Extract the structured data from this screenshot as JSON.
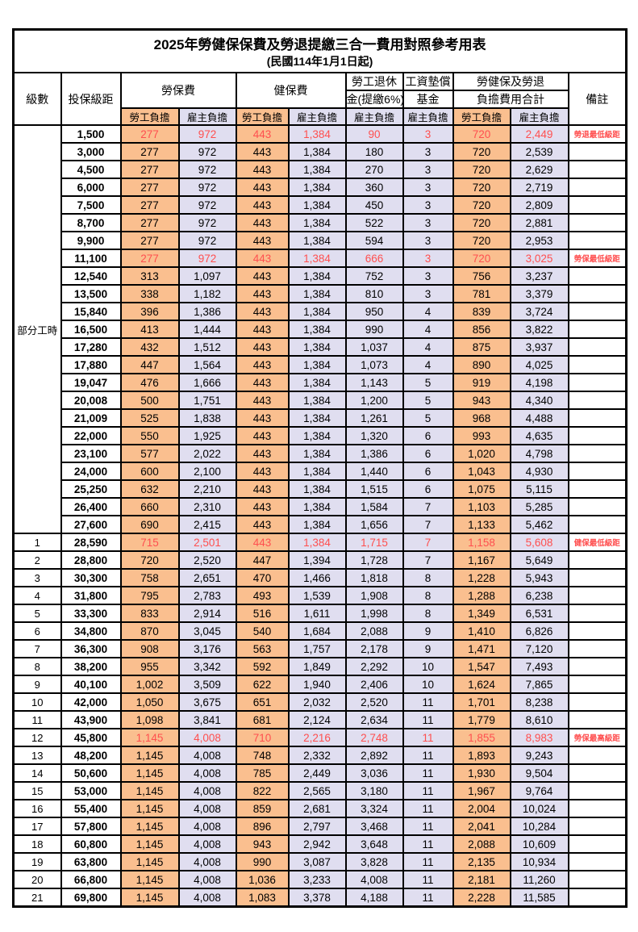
{
  "title": "2025年勞健保保費及勞退提繳三合一費用對照參考用表",
  "subtitle": "(民國114年1月1日起)",
  "colors": {
    "employee_cell_bg": "#FABF8F",
    "employer_cell_bg": "#E0DEF0",
    "highlight_text": "#FF4F4F",
    "border": "#000000"
  },
  "header": {
    "level": "級數",
    "bracket": "投保級距",
    "labor_insurance": "勞保費",
    "health_insurance": "健保費",
    "pension_line1": "勞工退休",
    "pension_line2": "金(提繳6%)",
    "wage_fund_line1": "工資墊償",
    "wage_fund_line2": "基金",
    "total_line1": "勞健保及勞退",
    "total_line2": "負擔費用合計",
    "employee": "勞工負擔",
    "employer": "雇主負擔",
    "remark": "備註"
  },
  "part_time_label": "部分工時",
  "rows": [
    {
      "level": "",
      "bracket": "1,500",
      "values": [
        "277",
        "972",
        "443",
        "1,384",
        "90",
        "3",
        "720",
        "2,449"
      ],
      "remark": "勞退最低級距",
      "red": true
    },
    {
      "level": "",
      "bracket": "3,000",
      "values": [
        "277",
        "972",
        "443",
        "1,384",
        "180",
        "3",
        "720",
        "2,539"
      ],
      "remark": "",
      "red": false
    },
    {
      "level": "",
      "bracket": "4,500",
      "values": [
        "277",
        "972",
        "443",
        "1,384",
        "270",
        "3",
        "720",
        "2,629"
      ],
      "remark": "",
      "red": false
    },
    {
      "level": "",
      "bracket": "6,000",
      "values": [
        "277",
        "972",
        "443",
        "1,384",
        "360",
        "3",
        "720",
        "2,719"
      ],
      "remark": "",
      "red": false
    },
    {
      "level": "",
      "bracket": "7,500",
      "values": [
        "277",
        "972",
        "443",
        "1,384",
        "450",
        "3",
        "720",
        "2,809"
      ],
      "remark": "",
      "red": false
    },
    {
      "level": "",
      "bracket": "8,700",
      "values": [
        "277",
        "972",
        "443",
        "1,384",
        "522",
        "3",
        "720",
        "2,881"
      ],
      "remark": "",
      "red": false
    },
    {
      "level": "",
      "bracket": "9,900",
      "values": [
        "277",
        "972",
        "443",
        "1,384",
        "594",
        "3",
        "720",
        "2,953"
      ],
      "remark": "",
      "red": false
    },
    {
      "level": "",
      "bracket": "11,100",
      "values": [
        "277",
        "972",
        "443",
        "1,384",
        "666",
        "3",
        "720",
        "3,025"
      ],
      "remark": "勞保最低級距",
      "red": true
    },
    {
      "level": "",
      "bracket": "12,540",
      "values": [
        "313",
        "1,097",
        "443",
        "1,384",
        "752",
        "3",
        "756",
        "3,237"
      ],
      "remark": "",
      "red": false
    },
    {
      "level": "",
      "bracket": "13,500",
      "values": [
        "338",
        "1,182",
        "443",
        "1,384",
        "810",
        "3",
        "781",
        "3,379"
      ],
      "remark": "",
      "red": false
    },
    {
      "level": "",
      "bracket": "15,840",
      "values": [
        "396",
        "1,386",
        "443",
        "1,384",
        "950",
        "4",
        "839",
        "3,724"
      ],
      "remark": "",
      "red": false
    },
    {
      "level": "",
      "bracket": "16,500",
      "values": [
        "413",
        "1,444",
        "443",
        "1,384",
        "990",
        "4",
        "856",
        "3,822"
      ],
      "remark": "",
      "red": false
    },
    {
      "level": "",
      "bracket": "17,280",
      "values": [
        "432",
        "1,512",
        "443",
        "1,384",
        "1,037",
        "4",
        "875",
        "3,937"
      ],
      "remark": "",
      "red": false
    },
    {
      "level": "",
      "bracket": "17,880",
      "values": [
        "447",
        "1,564",
        "443",
        "1,384",
        "1,073",
        "4",
        "890",
        "4,025"
      ],
      "remark": "",
      "red": false
    },
    {
      "level": "",
      "bracket": "19,047",
      "values": [
        "476",
        "1,666",
        "443",
        "1,384",
        "1,143",
        "5",
        "919",
        "4,198"
      ],
      "remark": "",
      "red": false
    },
    {
      "level": "",
      "bracket": "20,008",
      "values": [
        "500",
        "1,751",
        "443",
        "1,384",
        "1,200",
        "5",
        "943",
        "4,340"
      ],
      "remark": "",
      "red": false
    },
    {
      "level": "",
      "bracket": "21,009",
      "values": [
        "525",
        "1,838",
        "443",
        "1,384",
        "1,261",
        "5",
        "968",
        "4,488"
      ],
      "remark": "",
      "red": false
    },
    {
      "level": "",
      "bracket": "22,000",
      "values": [
        "550",
        "1,925",
        "443",
        "1,384",
        "1,320",
        "6",
        "993",
        "4,635"
      ],
      "remark": "",
      "red": false
    },
    {
      "level": "",
      "bracket": "23,100",
      "values": [
        "577",
        "2,022",
        "443",
        "1,384",
        "1,386",
        "6",
        "1,020",
        "4,798"
      ],
      "remark": "",
      "red": false
    },
    {
      "level": "",
      "bracket": "24,000",
      "values": [
        "600",
        "2,100",
        "443",
        "1,384",
        "1,440",
        "6",
        "1,043",
        "4,930"
      ],
      "remark": "",
      "red": false
    },
    {
      "level": "",
      "bracket": "25,250",
      "values": [
        "632",
        "2,210",
        "443",
        "1,384",
        "1,515",
        "6",
        "1,075",
        "5,115"
      ],
      "remark": "",
      "red": false
    },
    {
      "level": "",
      "bracket": "26,400",
      "values": [
        "660",
        "2,310",
        "443",
        "1,384",
        "1,584",
        "7",
        "1,103",
        "5,285"
      ],
      "remark": "",
      "red": false
    },
    {
      "level": "",
      "bracket": "27,600",
      "values": [
        "690",
        "2,415",
        "443",
        "1,384",
        "1,656",
        "7",
        "1,133",
        "5,462"
      ],
      "remark": "",
      "red": false
    },
    {
      "level": "1",
      "bracket": "28,590",
      "values": [
        "715",
        "2,501",
        "443",
        "1,384",
        "1,715",
        "7",
        "1,158",
        "5,608"
      ],
      "remark": "健保最低級距",
      "red": true
    },
    {
      "level": "2",
      "bracket": "28,800",
      "values": [
        "720",
        "2,520",
        "447",
        "1,394",
        "1,728",
        "7",
        "1,167",
        "5,649"
      ],
      "remark": "",
      "red": false
    },
    {
      "level": "3",
      "bracket": "30,300",
      "values": [
        "758",
        "2,651",
        "470",
        "1,466",
        "1,818",
        "8",
        "1,228",
        "5,943"
      ],
      "remark": "",
      "red": false
    },
    {
      "level": "4",
      "bracket": "31,800",
      "values": [
        "795",
        "2,783",
        "493",
        "1,539",
        "1,908",
        "8",
        "1,288",
        "6,238"
      ],
      "remark": "",
      "red": false
    },
    {
      "level": "5",
      "bracket": "33,300",
      "values": [
        "833",
        "2,914",
        "516",
        "1,611",
        "1,998",
        "8",
        "1,349",
        "6,531"
      ],
      "remark": "",
      "red": false
    },
    {
      "level": "6",
      "bracket": "34,800",
      "values": [
        "870",
        "3,045",
        "540",
        "1,684",
        "2,088",
        "9",
        "1,410",
        "6,826"
      ],
      "remark": "",
      "red": false
    },
    {
      "level": "7",
      "bracket": "36,300",
      "values": [
        "908",
        "3,176",
        "563",
        "1,757",
        "2,178",
        "9",
        "1,471",
        "7,120"
      ],
      "remark": "",
      "red": false
    },
    {
      "level": "8",
      "bracket": "38,200",
      "values": [
        "955",
        "3,342",
        "592",
        "1,849",
        "2,292",
        "10",
        "1,547",
        "7,493"
      ],
      "remark": "",
      "red": false
    },
    {
      "level": "9",
      "bracket": "40,100",
      "values": [
        "1,002",
        "3,509",
        "622",
        "1,940",
        "2,406",
        "10",
        "1,624",
        "7,865"
      ],
      "remark": "",
      "red": false
    },
    {
      "level": "10",
      "bracket": "42,000",
      "values": [
        "1,050",
        "3,675",
        "651",
        "2,032",
        "2,520",
        "11",
        "1,701",
        "8,238"
      ],
      "remark": "",
      "red": false
    },
    {
      "level": "11",
      "bracket": "43,900",
      "values": [
        "1,098",
        "3,841",
        "681",
        "2,124",
        "2,634",
        "11",
        "1,779",
        "8,610"
      ],
      "remark": "",
      "red": false
    },
    {
      "level": "12",
      "bracket": "45,800",
      "values": [
        "1,145",
        "4,008",
        "710",
        "2,216",
        "2,748",
        "11",
        "1,855",
        "8,983"
      ],
      "remark": "勞保最高級距",
      "red": true
    },
    {
      "level": "13",
      "bracket": "48,200",
      "values": [
        "1,145",
        "4,008",
        "748",
        "2,332",
        "2,892",
        "11",
        "1,893",
        "9,243"
      ],
      "remark": "",
      "red": false
    },
    {
      "level": "14",
      "bracket": "50,600",
      "values": [
        "1,145",
        "4,008",
        "785",
        "2,449",
        "3,036",
        "11",
        "1,930",
        "9,504"
      ],
      "remark": "",
      "red": false
    },
    {
      "level": "15",
      "bracket": "53,000",
      "values": [
        "1,145",
        "4,008",
        "822",
        "2,565",
        "3,180",
        "11",
        "1,967",
        "9,764"
      ],
      "remark": "",
      "red": false
    },
    {
      "level": "16",
      "bracket": "55,400",
      "values": [
        "1,145",
        "4,008",
        "859",
        "2,681",
        "3,324",
        "11",
        "2,004",
        "10,024"
      ],
      "remark": "",
      "red": false
    },
    {
      "level": "17",
      "bracket": "57,800",
      "values": [
        "1,145",
        "4,008",
        "896",
        "2,797",
        "3,468",
        "11",
        "2,041",
        "10,284"
      ],
      "remark": "",
      "red": false
    },
    {
      "level": "18",
      "bracket": "60,800",
      "values": [
        "1,145",
        "4,008",
        "943",
        "2,942",
        "3,648",
        "11",
        "2,088",
        "10,609"
      ],
      "remark": "",
      "red": false
    },
    {
      "level": "19",
      "bracket": "63,800",
      "values": [
        "1,145",
        "4,008",
        "990",
        "3,087",
        "3,828",
        "11",
        "2,135",
        "10,934"
      ],
      "remark": "",
      "red": false
    },
    {
      "level": "20",
      "bracket": "66,800",
      "values": [
        "1,145",
        "4,008",
        "1,036",
        "3,233",
        "4,008",
        "11",
        "2,181",
        "11,260"
      ],
      "remark": "",
      "red": false
    },
    {
      "level": "21",
      "bracket": "69,800",
      "values": [
        "1,145",
        "4,008",
        "1,083",
        "3,378",
        "4,188",
        "11",
        "2,228",
        "11,585"
      ],
      "remark": "",
      "red": false
    }
  ]
}
